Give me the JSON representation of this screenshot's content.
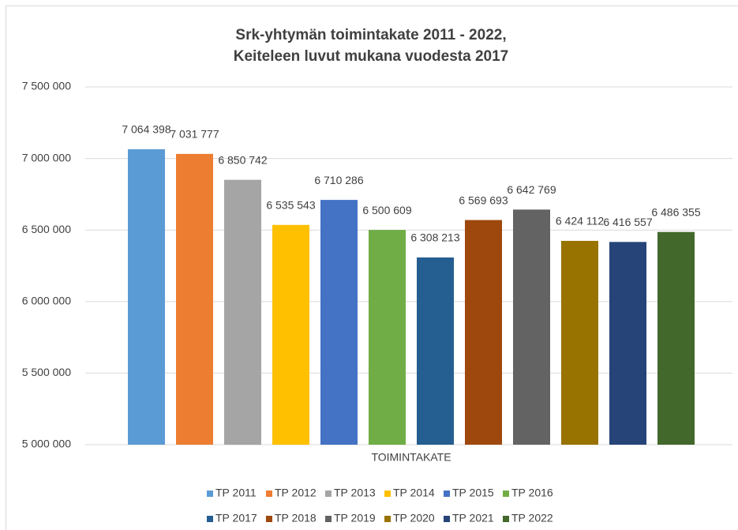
{
  "chart_data": {
    "type": "bar",
    "title": [
      "Srk-yhtymän toimintakate 2011 - 2022,",
      "Keiteleen luvut mukana  vuodesta 2017"
    ],
    "categories": [
      "TOIMINTAKATE"
    ],
    "ylim": [
      5000000,
      7500000
    ],
    "yticks": [
      {
        "value": 5000000,
        "label": "5 000 000"
      },
      {
        "value": 5500000,
        "label": "5 500 000"
      },
      {
        "value": 6000000,
        "label": "6 000 000"
      },
      {
        "value": 6500000,
        "label": "6 500 000"
      },
      {
        "value": 7000000,
        "label": "7 000 000"
      },
      {
        "value": 7500000,
        "label": "7 500 000"
      }
    ],
    "grid": true,
    "series": [
      {
        "name": "TP 2011",
        "color": "#5b9bd5",
        "values": [
          7064398
        ],
        "value_labels": [
          "7 064 398"
        ]
      },
      {
        "name": "TP 2012",
        "color": "#ed7d31",
        "values": [
          7031777
        ],
        "value_labels": [
          "7 031 777"
        ]
      },
      {
        "name": "TP 2013",
        "color": "#a5a5a5",
        "values": [
          6850742
        ],
        "value_labels": [
          "6 850 742"
        ]
      },
      {
        "name": "TP 2014",
        "color": "#ffc000",
        "values": [
          6535543
        ],
        "value_labels": [
          "6 535 543"
        ]
      },
      {
        "name": "TP 2015",
        "color": "#4472c4",
        "values": [
          6710286
        ],
        "value_labels": [
          "6 710 286"
        ]
      },
      {
        "name": "TP 2016",
        "color": "#70ad47",
        "values": [
          6500609
        ],
        "value_labels": [
          "6 500 609"
        ]
      },
      {
        "name": "TP 2017",
        "color": "#255e91",
        "values": [
          6308213
        ],
        "value_labels": [
          "6 308 213"
        ]
      },
      {
        "name": "TP 2018",
        "color": "#9e480e",
        "values": [
          6569693
        ],
        "value_labels": [
          "6 569 693"
        ]
      },
      {
        "name": "TP 2019",
        "color": "#636363",
        "values": [
          6642769
        ],
        "value_labels": [
          "6 642 769"
        ]
      },
      {
        "name": "TP 2020",
        "color": "#997300",
        "values": [
          6424112
        ],
        "value_labels": [
          "6 424 112"
        ]
      },
      {
        "name": "TP 2021",
        "color": "#264478",
        "values": [
          6416557
        ],
        "value_labels": [
          "6 416 557"
        ]
      },
      {
        "name": "TP 2022",
        "color": "#43682b",
        "values": [
          6486355
        ],
        "value_labels": [
          "6 486 355"
        ]
      }
    ]
  }
}
